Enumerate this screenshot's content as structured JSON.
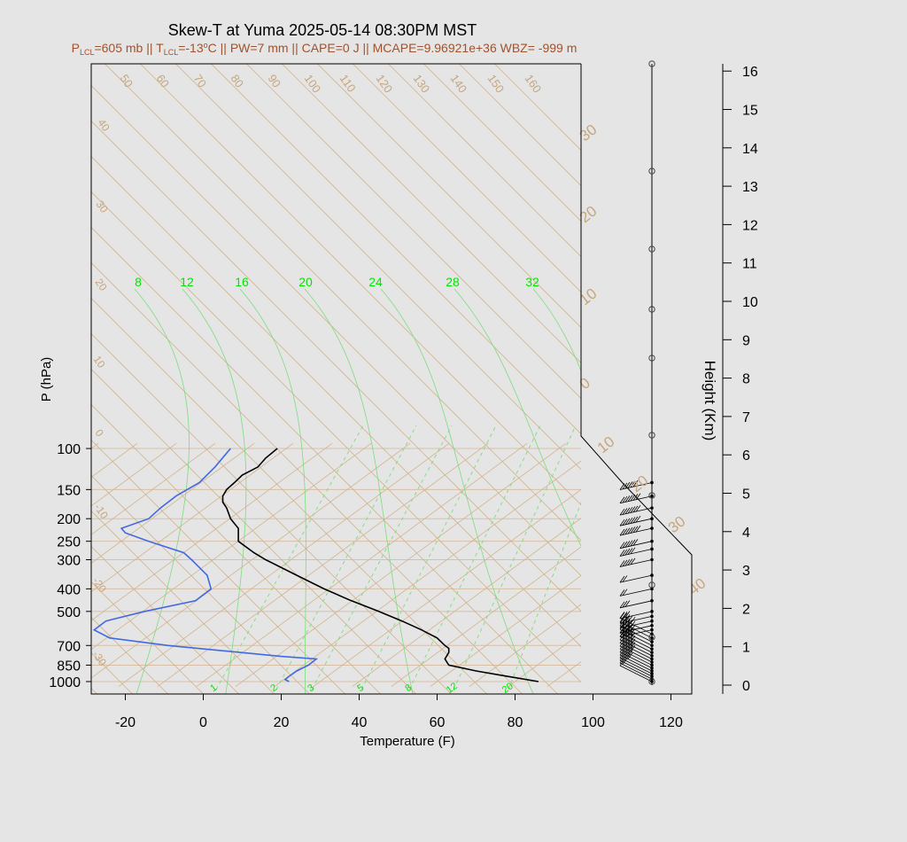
{
  "chart_data": {
    "type": "skew-t",
    "title": "Skew-T at Yuma 2025-05-14 08:30PM MST",
    "subtitle": "P_LCL=605 mb || T_LCL=-13°C || PW=7 mm || CAPE=0 J || MCAPE=9.96921e+36 WBZ= -999 m",
    "xlabel": "Temperature (F)",
    "ylabel": "P (hPa)",
    "y2label": "Height (Km)",
    "xticks": [
      -20,
      0,
      20,
      40,
      60,
      80,
      100,
      120
    ],
    "yticks": [
      100,
      150,
      200,
      250,
      300,
      400,
      500,
      700,
      850,
      1000
    ],
    "height_ticks": [
      0,
      1,
      2,
      3,
      4,
      5,
      6,
      7,
      8,
      9,
      10,
      11,
      12,
      13,
      14,
      15,
      16
    ],
    "isotherm_labels_top": [
      "50",
      "60",
      "70",
      "80",
      "90",
      "100",
      "110",
      "120",
      "130",
      "140",
      "150",
      "160"
    ],
    "isotherm_labels_left": [
      "40",
      "30",
      "20",
      "10",
      "0",
      "-10",
      "-20",
      "-30"
    ],
    "isotherm_labels_right": [
      "30",
      "20",
      "10",
      "0",
      "10",
      "20",
      "30",
      "40"
    ],
    "moist_adiabat_labels": [
      "8",
      "12",
      "16",
      "20",
      "24",
      "28",
      "32"
    ],
    "mixing_ratio_labels": [
      "1",
      "2",
      "3",
      "5",
      "8",
      "12",
      "20"
    ],
    "temperature_profile": {
      "color": "#000000",
      "pressure": [
        1000,
        950,
        900,
        850,
        800,
        750,
        720,
        700,
        650,
        600,
        550,
        500,
        450,
        400,
        350,
        300,
        280,
        250,
        220,
        200,
        180,
        170,
        160,
        150,
        140,
        130,
        120,
        110,
        100
      ],
      "temp_f": [
        86,
        78,
        70,
        63,
        62,
        63,
        63,
        62,
        60,
        56,
        51,
        45,
        38,
        31,
        24,
        16,
        13,
        9,
        9,
        7,
        6,
        5,
        5,
        6,
        8,
        10,
        14,
        16,
        19
      ]
    },
    "dewpoint_profile": {
      "color": "#4169e1",
      "pressure": [
        1000,
        980,
        950,
        900,
        850,
        800,
        780,
        700,
        650,
        600,
        550,
        500,
        450,
        400,
        350,
        300,
        280,
        250,
        230,
        220,
        200,
        180,
        160,
        140,
        120,
        100
      ],
      "dewpoint_f": [
        22,
        21,
        22,
        24,
        27,
        29,
        20,
        -9,
        -24,
        -28,
        -25,
        -15,
        -2,
        2,
        1,
        -3,
        -5,
        -14,
        -20,
        -21,
        -14,
        -11,
        -7,
        -1,
        3,
        7
      ]
    },
    "wind_barbs": {
      "pressure": [
        1000,
        975,
        950,
        925,
        900,
        875,
        850,
        825,
        800,
        775,
        750,
        725,
        700,
        675,
        650,
        625,
        600,
        575,
        550,
        525,
        500,
        450,
        400,
        350,
        300,
        270,
        250,
        220,
        200,
        180,
        160,
        140
      ],
      "speed_kt": [
        5,
        10,
        10,
        15,
        20,
        20,
        20,
        25,
        25,
        25,
        25,
        25,
        25,
        25,
        25,
        25,
        20,
        20,
        20,
        15,
        15,
        15,
        10,
        10,
        25,
        25,
        30,
        35,
        35,
        35,
        35,
        30
      ]
    }
  }
}
